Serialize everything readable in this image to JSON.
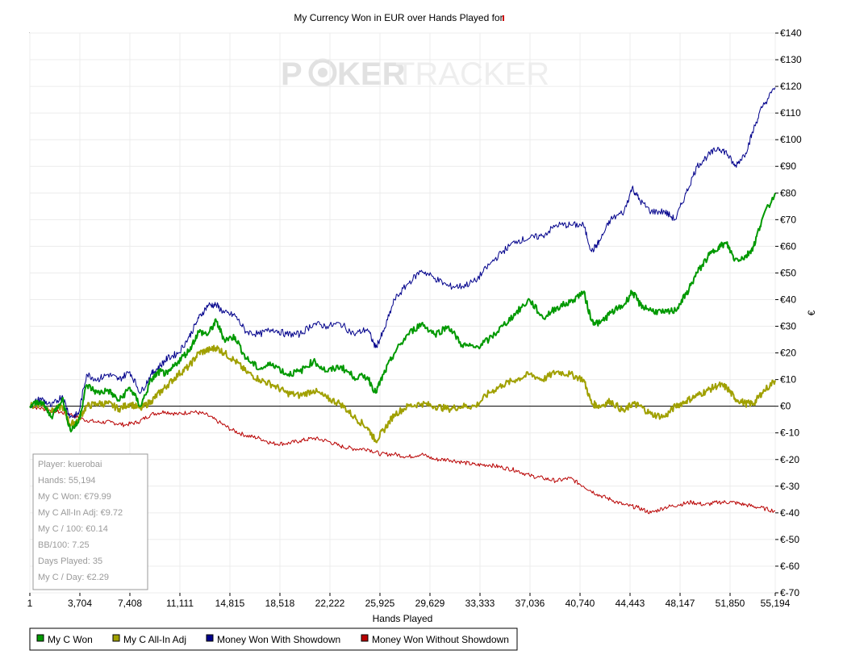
{
  "chart_data": {
    "type": "line",
    "title": "My Currency Won in EUR over Hands Played for",
    "watermark": {
      "part1": "P",
      "part2": "KER",
      "part3": "TRACKER"
    },
    "xlabel": "Hands Played",
    "ylabel": "€",
    "xlim": [
      1,
      55194
    ],
    "ylim": [
      -70,
      140
    ],
    "x_ticks": [
      1,
      3704,
      7408,
      11111,
      14815,
      18518,
      22222,
      25925,
      29629,
      33333,
      37036,
      40740,
      44443,
      48147,
      51850,
      55194
    ],
    "x_tick_labels": [
      "1",
      "3,704",
      "7,408",
      "11,111",
      "14,815",
      "18,518",
      "22,222",
      "25,925",
      "29,629",
      "33,333",
      "37,036",
      "40,740",
      "44,443",
      "48,147",
      "51,850",
      "55,194"
    ],
    "y_ticks": [
      140,
      130,
      120,
      110,
      100,
      90,
      80,
      70,
      60,
      50,
      40,
      30,
      20,
      10,
      0,
      -10,
      -20,
      -30,
      -40,
      -50,
      -60,
      -70
    ],
    "y_tick_labels": [
      "€140",
      "€130",
      "€120",
      "€110",
      "€100",
      "€90",
      "€80",
      "€70",
      "€60",
      "€50",
      "€40",
      "€30",
      "€20",
      "€10",
      "€0",
      "€-10",
      "€-20",
      "€-30",
      "€-40",
      "€-50",
      "€-60",
      "€-70"
    ],
    "grid": true,
    "legend_position": "bottom-left",
    "series": [
      {
        "name": "My C Won",
        "color": "#009900",
        "x": [
          1,
          800,
          1600,
          2400,
          3000,
          3600,
          4200,
          5000,
          5800,
          6600,
          7400,
          8200,
          9000,
          9600,
          10200,
          11000,
          11800,
          12500,
          13200,
          13800,
          14400,
          15200,
          16000,
          17000,
          18000,
          19000,
          20000,
          21000,
          22000,
          23000,
          24000,
          25000,
          25600,
          26200,
          27000,
          28000,
          29000,
          30000,
          31000,
          32000,
          33000,
          34000,
          35000,
          36000,
          37000,
          38000,
          39000,
          40000,
          41000,
          41600,
          42200,
          43000,
          44000,
          44600,
          45200,
          46000,
          47000,
          47800,
          48600,
          49400,
          50200,
          51000,
          51600,
          52200,
          53000,
          53600,
          54200,
          55194
        ],
        "y": [
          0,
          2,
          -4,
          3,
          -9,
          -6,
          8,
          5,
          6,
          2,
          7,
          0,
          10,
          13,
          12,
          17,
          21,
          28,
          27,
          32,
          25,
          26,
          18,
          14,
          16,
          12,
          13,
          17,
          13,
          15,
          11,
          11,
          5,
          12,
          20,
          27,
          31,
          27,
          30,
          23,
          22,
          25,
          30,
          35,
          40,
          33,
          37,
          39,
          43,
          32,
          31,
          35,
          38,
          43,
          38,
          36,
          35,
          36,
          42,
          50,
          56,
          60,
          61,
          55,
          56,
          60,
          70,
          79.99
        ]
      },
      {
        "name": "My C All-In Adj",
        "color": "#a0a000",
        "x": [
          1,
          800,
          1600,
          2400,
          3000,
          3600,
          4200,
          5000,
          5800,
          6600,
          7400,
          8200,
          9000,
          9600,
          10200,
          11000,
          11800,
          12500,
          13200,
          13800,
          14400,
          15200,
          16000,
          17000,
          18000,
          19000,
          20000,
          21000,
          22000,
          23000,
          24000,
          25000,
          25600,
          26200,
          27000,
          28000,
          29000,
          30000,
          31000,
          32000,
          33000,
          34000,
          35000,
          36000,
          37000,
          38000,
          39000,
          40000,
          41000,
          41600,
          42200,
          43000,
          44000,
          44600,
          45200,
          46000,
          47000,
          47800,
          48600,
          49400,
          50200,
          51000,
          51600,
          52200,
          53000,
          53600,
          54200,
          55194
        ],
        "y": [
          0,
          1,
          -2,
          0,
          -7,
          -5,
          0,
          1,
          1,
          -1,
          1,
          -1,
          2,
          5,
          8,
          12,
          15,
          20,
          21,
          22,
          20,
          17,
          13,
          10,
          8,
          5,
          4,
          6,
          3,
          1,
          -4,
          -8,
          -13,
          -9,
          -3,
          0,
          1,
          0,
          -1,
          0,
          0,
          5,
          8,
          10,
          12,
          10,
          13,
          12,
          10,
          1,
          0,
          2,
          -2,
          1,
          0,
          -3,
          -4,
          0,
          2,
          4,
          6,
          8,
          7,
          3,
          1,
          1,
          5,
          9.72
        ]
      },
      {
        "name": "Money Won With Showdown",
        "color": "#00008b",
        "x": [
          1,
          800,
          1600,
          2400,
          3000,
          3600,
          4200,
          5000,
          5800,
          6600,
          7400,
          8200,
          9000,
          9600,
          10200,
          11000,
          11800,
          12500,
          13200,
          13800,
          14400,
          15200,
          16000,
          17000,
          18000,
          19000,
          20000,
          21000,
          22000,
          23000,
          24000,
          25000,
          25600,
          26200,
          27000,
          28000,
          29000,
          30000,
          31000,
          32000,
          33000,
          34000,
          35000,
          36000,
          37000,
          38000,
          39000,
          40000,
          41000,
          41600,
          42200,
          43000,
          44000,
          44600,
          45200,
          46000,
          47000,
          47800,
          48600,
          49400,
          50200,
          51000,
          51600,
          52200,
          53000,
          53600,
          54200,
          55194
        ],
        "y": [
          0,
          3,
          0,
          4,
          -4,
          -3,
          12,
          10,
          12,
          10,
          13,
          5,
          12,
          15,
          18,
          20,
          26,
          33,
          38,
          38,
          35,
          34,
          28,
          27,
          29,
          27,
          27,
          31,
          30,
          31,
          27,
          29,
          22,
          28,
          40,
          46,
          51,
          48,
          45,
          45,
          47,
          53,
          58,
          62,
          63,
          64,
          68,
          68,
          68,
          58,
          62,
          70,
          73,
          82,
          77,
          73,
          73,
          70,
          80,
          90,
          94,
          97,
          95,
          90,
          95,
          104,
          112,
          119.6
        ]
      },
      {
        "name": "Money Won Without Showdown",
        "color": "#b80000",
        "x": [
          1,
          1000,
          2000,
          3000,
          4000,
          5000,
          6000,
          7000,
          8000,
          9000,
          10000,
          11000,
          12000,
          13000,
          14000,
          15000,
          16000,
          17000,
          18000,
          19000,
          20000,
          21000,
          22000,
          23000,
          24000,
          25000,
          26000,
          27000,
          28000,
          29000,
          30000,
          31000,
          32000,
          33000,
          34000,
          35000,
          36000,
          37000,
          38000,
          39000,
          40000,
          41000,
          42000,
          43000,
          44000,
          45000,
          46000,
          47000,
          48000,
          49000,
          50000,
          51000,
          52000,
          53000,
          54000,
          55194
        ],
        "y": [
          0,
          -1,
          -2,
          -3,
          -5,
          -6,
          -6,
          -7,
          -6,
          -3,
          -2,
          -3,
          -2,
          -3,
          -6,
          -9,
          -11,
          -12,
          -14,
          -14,
          -13,
          -12,
          -13,
          -15,
          -16,
          -16,
          -18,
          -18,
          -19,
          -18,
          -20,
          -20,
          -21,
          -22,
          -22,
          -23,
          -24,
          -26,
          -27,
          -28,
          -27,
          -30,
          -33,
          -35,
          -37,
          -38,
          -40,
          -38,
          -37,
          -36,
          -37,
          -36,
          -36,
          -37,
          -38,
          -39.3
        ]
      }
    ],
    "stats_box": [
      "Player: kuerobai",
      "Hands: 55,194",
      "My C Won: €79.99",
      "My C All-In Adj: €9.72",
      "My C / 100: €0.14",
      "BB/100: 7.25",
      "Days Played: 35",
      "My C / Day: €2.29"
    ]
  }
}
